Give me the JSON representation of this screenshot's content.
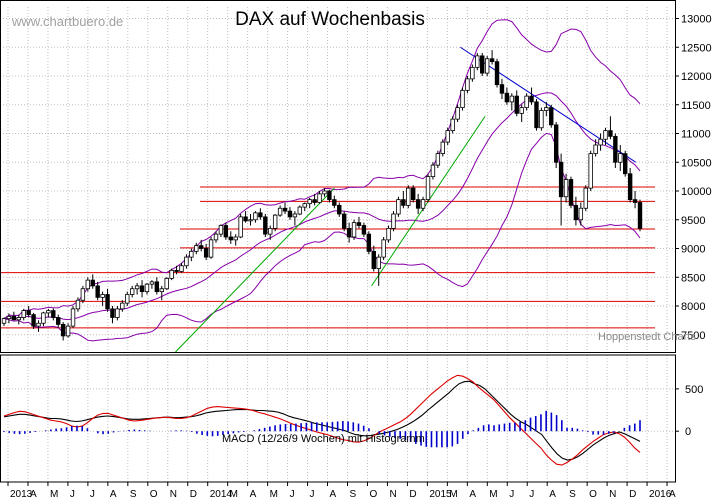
{
  "watermark": "www.chartbuero.de",
  "source_note": "Hoppenstedt Charts",
  "chart_data": [
    {
      "type": "candlestick",
      "title": "DAX auf Wochenbasis",
      "ylim": [
        7200,
        13200
      ],
      "y_ticks": [
        7500,
        8000,
        8500,
        9000,
        9500,
        10000,
        10500,
        11000,
        11500,
        12000,
        12500,
        13000
      ],
      "x_ticks": [
        "2013",
        "A",
        "M",
        "J",
        "J",
        "A",
        "S",
        "O",
        "N",
        "D",
        "2014",
        "M",
        "A",
        "M",
        "J",
        "J",
        "A",
        "S",
        "O",
        "N",
        "D",
        "2015",
        "M",
        "A",
        "M",
        "J",
        "J",
        "A",
        "S",
        "O",
        "N",
        "D",
        "2016",
        "A"
      ],
      "grid": true,
      "horizontal_levels": [
        7620,
        8080,
        8580,
        9010,
        9340,
        9820,
        10070
      ],
      "trendlines": [
        {
          "color": "#00aa00",
          "from": [
            2013.85,
            7200
          ],
          "to": [
            2014.62,
            10050
          ]
        },
        {
          "color": "#00aa00",
          "from": [
            2014.8,
            8350
          ],
          "to": [
            2015.35,
            11300
          ]
        },
        {
          "color": "#0000cc",
          "from": [
            2015.23,
            12500
          ],
          "to": [
            2016.08,
            10500
          ]
        }
      ],
      "bands": {
        "color": "#8800aa",
        "description": "Bollinger bands"
      },
      "ohlc_weeks": [
        [
          7700,
          7800,
          7650,
          7780
        ],
        [
          7780,
          7870,
          7700,
          7820
        ],
        [
          7820,
          7900,
          7750,
          7760
        ],
        [
          7760,
          7850,
          7680,
          7800
        ],
        [
          7800,
          7950,
          7750,
          7920
        ],
        [
          7920,
          8000,
          7800,
          7850
        ],
        [
          7850,
          7880,
          7600,
          7650
        ],
        [
          7650,
          7750,
          7550,
          7700
        ],
        [
          7700,
          7900,
          7650,
          7880
        ],
        [
          7880,
          7950,
          7800,
          7920
        ],
        [
          7920,
          7960,
          7750,
          7800
        ],
        [
          7800,
          7850,
          7620,
          7680
        ],
        [
          7680,
          7720,
          7400,
          7480
        ],
        [
          7480,
          7700,
          7450,
          7650
        ],
        [
          7650,
          8000,
          7620,
          7950
        ],
        [
          7950,
          8150,
          7900,
          8100
        ],
        [
          8100,
          8350,
          8050,
          8300
        ],
        [
          8300,
          8500,
          8250,
          8450
        ],
        [
          8450,
          8550,
          8300,
          8350
        ],
        [
          8350,
          8420,
          8100,
          8150
        ],
        [
          8150,
          8250,
          8000,
          8200
        ],
        [
          8200,
          8300,
          7900,
          7950
        ],
        [
          7950,
          8000,
          7700,
          7800
        ],
        [
          7800,
          8000,
          7750,
          7950
        ],
        [
          7950,
          8100,
          7900,
          8050
        ],
        [
          8050,
          8250,
          8000,
          8200
        ],
        [
          8200,
          8350,
          8150,
          8300
        ],
        [
          8300,
          8400,
          8200,
          8350
        ],
        [
          8350,
          8450,
          8150,
          8250
        ],
        [
          8250,
          8400,
          8200,
          8380
        ],
        [
          8380,
          8450,
          8300,
          8420
        ],
        [
          8420,
          8500,
          8200,
          8250
        ],
        [
          8250,
          8350,
          8100,
          8300
        ],
        [
          8300,
          8500,
          8280,
          8480
        ],
        [
          8480,
          8650,
          8450,
          8620
        ],
        [
          8620,
          8700,
          8550,
          8600
        ],
        [
          8600,
          8750,
          8580,
          8700
        ],
        [
          8700,
          8900,
          8650,
          8850
        ],
        [
          8850,
          9000,
          8780,
          8950
        ],
        [
          8950,
          9100,
          8900,
          9050
        ],
        [
          9050,
          9150,
          8950,
          9000
        ],
        [
          9000,
          9080,
          8800,
          8850
        ],
        [
          8850,
          9200,
          8820,
          9150
        ],
        [
          9150,
          9300,
          9100,
          9250
        ],
        [
          9250,
          9420,
          9200,
          9400
        ],
        [
          9400,
          9450,
          9150,
          9200
        ],
        [
          9200,
          9300,
          9080,
          9150
        ],
        [
          9150,
          9250,
          9050,
          9200
        ],
        [
          9200,
          9600,
          9180,
          9550
        ],
        [
          9550,
          9650,
          9450,
          9480
        ],
        [
          9480,
          9600,
          9400,
          9500
        ],
        [
          9500,
          9650,
          9450,
          9620
        ],
        [
          9620,
          9700,
          9500,
          9550
        ],
        [
          9550,
          9600,
          9200,
          9250
        ],
        [
          9250,
          9400,
          9150,
          9350
        ],
        [
          9350,
          9600,
          9300,
          9580
        ],
        [
          9580,
          9750,
          9550,
          9700
        ],
        [
          9700,
          9800,
          9600,
          9650
        ],
        [
          9650,
          9720,
          9500,
          9550
        ],
        [
          9550,
          9650,
          9400,
          9600
        ],
        [
          9600,
          9750,
          9580,
          9720
        ],
        [
          9720,
          9800,
          9650,
          9780
        ],
        [
          9780,
          9880,
          9700,
          9850
        ],
        [
          9850,
          9950,
          9750,
          9800
        ],
        [
          9800,
          10000,
          9780,
          9950
        ],
        [
          9950,
          10050,
          9900,
          10000
        ],
        [
          10000,
          10020,
          9800,
          9850
        ],
        [
          9850,
          9920,
          9700,
          9750
        ],
        [
          9750,
          9800,
          9550,
          9600
        ],
        [
          9600,
          9650,
          9300,
          9350
        ],
        [
          9350,
          9450,
          9100,
          9200
        ],
        [
          9200,
          9500,
          9150,
          9450
        ],
        [
          9450,
          9550,
          9350,
          9400
        ],
        [
          9400,
          9450,
          9200,
          9250
        ],
        [
          9250,
          9300,
          8900,
          8950
        ],
        [
          8950,
          9050,
          8600,
          8650
        ],
        [
          8650,
          8900,
          8350,
          8850
        ],
        [
          8850,
          9200,
          8800,
          9150
        ],
        [
          9150,
          9400,
          9100,
          9350
        ],
        [
          9350,
          9650,
          9300,
          9600
        ],
        [
          9600,
          9900,
          9550,
          9850
        ],
        [
          9850,
          10000,
          9700,
          9750
        ],
        [
          9750,
          10100,
          9700,
          10050
        ],
        [
          10050,
          10100,
          9800,
          9850
        ],
        [
          9850,
          9950,
          9600,
          9700
        ],
        [
          9700,
          9900,
          9650,
          9850
        ],
        [
          9850,
          10300,
          9800,
          10250
        ],
        [
          10250,
          10500,
          10200,
          10450
        ],
        [
          10450,
          10700,
          10400,
          10650
        ],
        [
          10650,
          10900,
          10600,
          10850
        ],
        [
          10850,
          11100,
          10800,
          11050
        ],
        [
          11050,
          11300,
          11000,
          11250
        ],
        [
          11250,
          11500,
          11200,
          11450
        ],
        [
          11450,
          11800,
          11400,
          11750
        ],
        [
          11750,
          12000,
          11700,
          11950
        ],
        [
          11950,
          12200,
          11900,
          12150
        ],
        [
          12150,
          12400,
          12100,
          12350
        ],
        [
          12350,
          12400,
          12000,
          12050
        ],
        [
          12050,
          12350,
          12000,
          12300
        ],
        [
          12300,
          12450,
          12200,
          12250
        ],
        [
          12250,
          12300,
          11800,
          11850
        ],
        [
          11850,
          11950,
          11600,
          11700
        ],
        [
          11700,
          11800,
          11500,
          11550
        ],
        [
          11550,
          11700,
          11400,
          11650
        ],
        [
          11650,
          11750,
          11300,
          11350
        ],
        [
          11350,
          11500,
          11200,
          11450
        ],
        [
          11450,
          11700,
          11400,
          11650
        ],
        [
          11650,
          11800,
          11500,
          11550
        ],
        [
          11550,
          11600,
          11050,
          11100
        ],
        [
          11100,
          11450,
          11050,
          11400
        ],
        [
          11400,
          11550,
          11300,
          11450
        ],
        [
          11450,
          11500,
          11100,
          11150
        ],
        [
          11150,
          11200,
          10400,
          10500
        ],
        [
          10500,
          10650,
          9400,
          9900
        ],
        [
          9900,
          10300,
          9800,
          10200
        ],
        [
          10200,
          10250,
          9700,
          9750
        ],
        [
          9750,
          9900,
          9400,
          9500
        ],
        [
          9500,
          9800,
          9400,
          9700
        ],
        [
          9700,
          10100,
          9650,
          10050
        ],
        [
          10050,
          10700,
          10000,
          10650
        ],
        [
          10650,
          10900,
          10600,
          10800
        ],
        [
          10800,
          11000,
          10700,
          10900
        ],
        [
          10900,
          11100,
          10800,
          11050
        ],
        [
          11050,
          11300,
          10900,
          10950
        ],
        [
          10950,
          11000,
          10400,
          10500
        ],
        [
          10500,
          10800,
          10350,
          10650
        ],
        [
          10650,
          10700,
          10250,
          10300
        ],
        [
          10300,
          10400,
          9800,
          9850
        ],
        [
          9850,
          10000,
          9700,
          9800
        ],
        [
          9800,
          9850,
          9300,
          9350
        ]
      ]
    },
    {
      "type": "line",
      "title": "MACD (12/26/9 Wochen) mit Histogramm",
      "ylim": [
        -600,
        900
      ],
      "y_ticks": [
        0,
        500
      ],
      "grid": true,
      "series": [
        {
          "color": "#000000",
          "values": [
            170,
            180,
            190,
            200,
            200,
            190,
            180,
            170,
            160,
            150,
            150,
            145,
            135,
            120,
            115,
            120,
            135,
            150,
            165,
            175,
            180,
            175,
            165,
            155,
            145,
            140,
            140,
            145,
            150,
            155,
            160,
            165,
            165,
            160,
            160,
            165,
            170,
            180,
            195,
            215,
            225,
            235,
            240,
            245,
            250,
            255,
            255,
            255,
            250,
            245,
            245,
            240,
            235,
            225,
            205,
            180,
            160,
            145,
            130,
            115,
            95,
            80,
            65,
            50,
            35,
            20,
            5,
            -20,
            -40,
            -50,
            -55,
            -50,
            -40,
            -30,
            -15,
            0,
            20,
            45,
            75,
            110,
            150,
            195,
            250,
            300,
            350,
            400,
            450,
            510,
            560,
            585,
            590,
            560,
            540,
            500,
            440,
            380,
            320,
            260,
            200,
            150,
            110,
            80,
            40,
            0,
            -40,
            -120,
            -200,
            -270,
            -320,
            -340,
            -330,
            -300,
            -260,
            -210,
            -160,
            -120,
            -80,
            -50,
            -30,
            -10,
            -30,
            -60,
            -90,
            -120
          ]
        },
        {
          "color": "#dd0000",
          "values": [
            180,
            200,
            220,
            235,
            230,
            210,
            190,
            170,
            150,
            130,
            120,
            110,
            90,
            60,
            50,
            60,
            100,
            150,
            190,
            210,
            210,
            190,
            170,
            150,
            130,
            120,
            125,
            135,
            145,
            155,
            160,
            165,
            160,
            150,
            150,
            160,
            180,
            210,
            240,
            270,
            285,
            290,
            285,
            280,
            275,
            270,
            265,
            255,
            240,
            220,
            205,
            185,
            165,
            145,
            120,
            95,
            70,
            50,
            30,
            10,
            -10,
            -25,
            -40,
            -60,
            -80,
            -100,
            -110,
            -125,
            -130,
            -115,
            -90,
            -50,
            -10,
            20,
            50,
            80,
            110,
            150,
            200,
            260,
            320,
            380,
            440,
            490,
            540,
            590,
            630,
            660,
            650,
            620,
            580,
            520,
            470,
            420,
            370,
            300,
            230,
            160,
            100,
            40,
            -20,
            -80,
            -140,
            -200,
            -280,
            -340,
            -390,
            -400,
            -370,
            -330,
            -280,
            -220,
            -170,
            -120,
            -80,
            -40,
            -20,
            -10,
            -30,
            -70,
            -130,
            -200,
            -250
          ]
        },
        {
          "color": "#0000cc",
          "style": "histogram",
          "values": [
            -10,
            -20,
            -30,
            -35,
            -30,
            -20,
            -10,
            0,
            10,
            20,
            30,
            35,
            45,
            60,
            65,
            60,
            35,
            0,
            -25,
            -35,
            -30,
            -15,
            -5,
            5,
            15,
            20,
            15,
            10,
            5,
            0,
            0,
            0,
            5,
            10,
            10,
            5,
            -10,
            -30,
            -45,
            -55,
            -60,
            -55,
            -45,
            -35,
            -25,
            -15,
            -10,
            0,
            10,
            25,
            40,
            55,
            70,
            80,
            85,
            85,
            90,
            95,
            100,
            105,
            105,
            105,
            105,
            110,
            115,
            120,
            115,
            105,
            90,
            65,
            35,
            0,
            -30,
            -50,
            -65,
            -80,
            -90,
            -105,
            -125,
            -150,
            -170,
            -185,
            -190,
            -190,
            -190,
            -190,
            -180,
            -150,
            -90,
            -35,
            10,
            40,
            70,
            80,
            70,
            80,
            90,
            100,
            100,
            110,
            130,
            160,
            180,
            200,
            240,
            220,
            190,
            130,
            40,
            40,
            30,
            10,
            -10,
            -40,
            -40,
            -40,
            -30,
            -20,
            0,
            40,
            70,
            90,
            130
          ]
        }
      ]
    }
  ]
}
